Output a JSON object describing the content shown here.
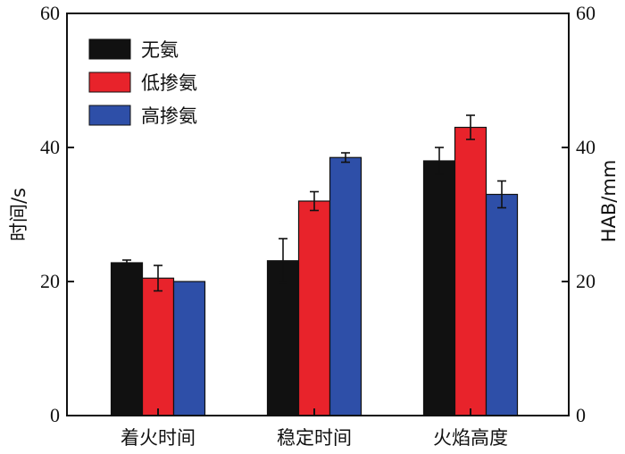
{
  "chart_data": {
    "type": "bar",
    "categories": [
      "着火时间",
      "稳定时间",
      "火焰高度"
    ],
    "series": [
      {
        "name": "无氨",
        "color": "#111111",
        "values": [
          22.8,
          23.1,
          38.0
        ],
        "errors": [
          0.4,
          3.3,
          2.0
        ]
      },
      {
        "name": "低掺氨",
        "color": "#e8232b",
        "values": [
          20.5,
          32.0,
          43.0
        ],
        "errors": [
          1.9,
          1.4,
          1.8
        ]
      },
      {
        "name": "高掺氨",
        "color": "#2e4fa8",
        "values": [
          20.0,
          38.5,
          33.0
        ],
        "errors": [
          0.0,
          0.7,
          2.0
        ]
      }
    ],
    "ylabel_left": "时间/s",
    "ylabel_right": "HAB/mm",
    "ylim": [
      0,
      60
    ],
    "yticks": [
      0,
      20,
      40,
      60
    ],
    "grid": false,
    "legend_position": "top-left"
  }
}
